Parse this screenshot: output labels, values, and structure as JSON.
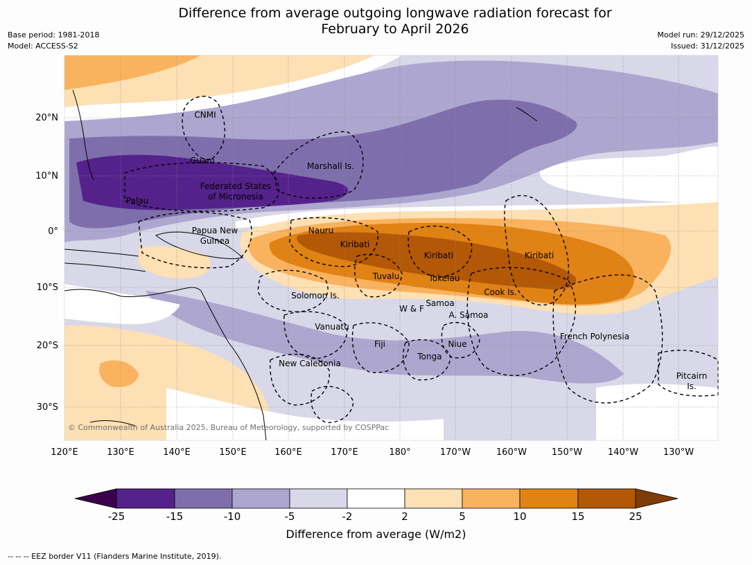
{
  "header": {
    "title_line1": "Difference from average outgoing longwave radiation forecast for",
    "title_line2": "February to April 2026",
    "base_period": "Base period: 1981-2018",
    "model": "Model: ACCESS-S2",
    "model_run": "Model run: 29/12/2025",
    "issued": "Issued: 31/12/2025"
  },
  "axes": {
    "lon_labels": [
      "120°E",
      "130°E",
      "140°E",
      "150°E",
      "160°E",
      "170°E",
      "180°",
      "170°W",
      "160°W",
      "150°W",
      "140°W",
      "130°W"
    ],
    "lat_labels": [
      "20°N",
      "10°N",
      "0°",
      "10°S",
      "20°S",
      "30°S"
    ]
  },
  "regions": {
    "cnmi": "CNMI",
    "guam": "Guam",
    "marshall": "Marshall Is.",
    "fsm_line1": "Federated States",
    "fsm_line2": "of Micronesia",
    "palau": "Palau",
    "png_line1": "Papua New",
    "png_line2": "Guinea",
    "nauru": "Nauru",
    "kiribati_west": "Kiribati",
    "kiribati_central": "Kiribati",
    "kiribati_east": "Kiribati",
    "tuvalu": "Tuvalu",
    "tokelau": "Tokelau",
    "cook": "Cook Is.",
    "solomon": "Solomon Is.",
    "wallis": "W & F",
    "samoa": "Samoa",
    "american_samoa": "A. Samoa",
    "vanuatu": "Vanuatu",
    "fiji": "Fiji",
    "niue": "Niue",
    "tonga": "Tonga",
    "new_caledonia": "New Caledonia",
    "french_polynesia": "French Polynesia",
    "pitcairn_line1": "Pitcairn",
    "pitcairn_line2": "Is."
  },
  "copyright": "© Commonwealth of Australia 2025, Bureau of Meteorology, supported by COSPPac",
  "colorbar": {
    "tick_labels": [
      "-25",
      "-15",
      "-10",
      "-5",
      "-2",
      "2",
      "5",
      "10",
      "15",
      "25"
    ],
    "colors": {
      "under": "#3a004d",
      "b1": "#54228a",
      "b2": "#7e6fac",
      "b3": "#ada6cf",
      "b4": "#d8d8e8",
      "b5": "#ffffff",
      "b6": "#fde0b4",
      "b7": "#f9b35f",
      "b8": "#e08214",
      "b9": "#b35806",
      "over": "#7f3b08"
    },
    "title": "Difference from average (W/m2)"
  },
  "footer": {
    "eez_note": "--  --  -- EEZ border V11 (Flanders Marine Institute, 2019)."
  }
}
